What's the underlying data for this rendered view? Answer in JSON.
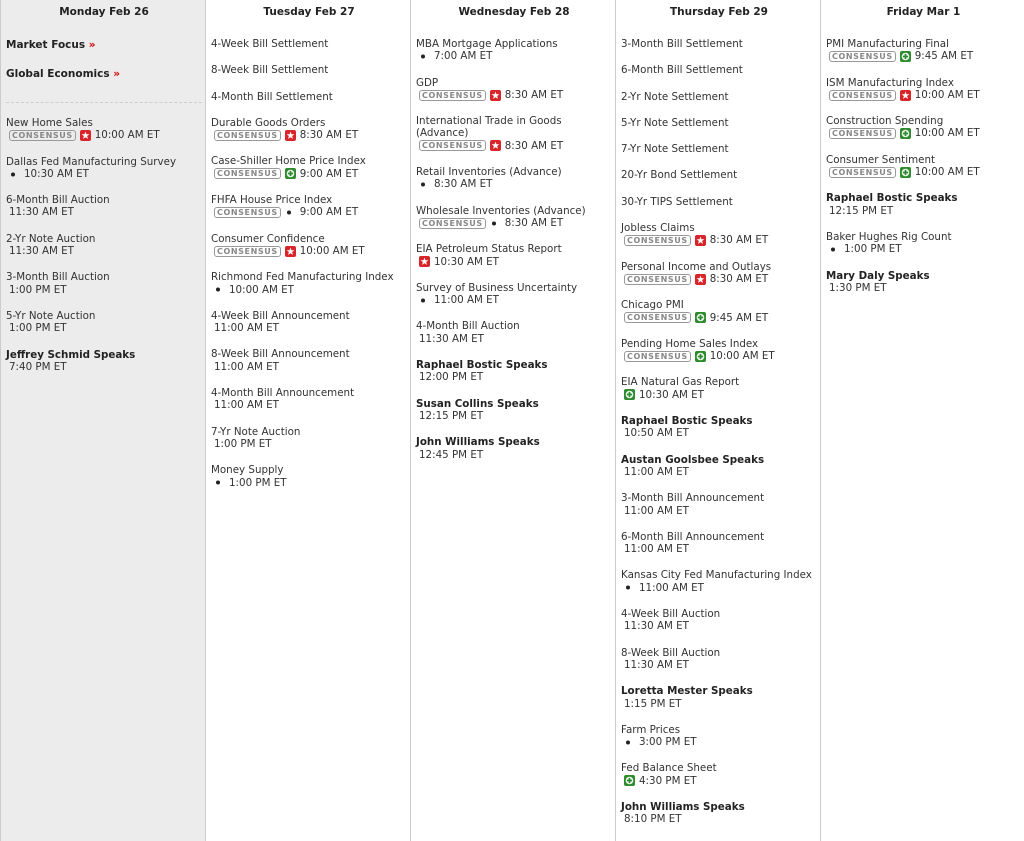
{
  "days": [
    {
      "header": "Monday Feb 26",
      "links": [
        {
          "label": "Market Focus",
          "arrow": "»"
        },
        {
          "label": "Global Economics",
          "arrow": "»"
        }
      ],
      "events": [
        {
          "name": "New Home Sales",
          "badge": "CONSENSUS",
          "icon": "star",
          "time": "10:00 AM ET"
        },
        {
          "name": "Dallas Fed Manufacturing Survey",
          "icon": "dot",
          "time": "10:30 AM ET"
        },
        {
          "name": "6-Month Bill Auction",
          "time": "11:30 AM ET"
        },
        {
          "name": "2-Yr Note Auction",
          "time": "11:30 AM ET"
        },
        {
          "name": "3-Month Bill Auction",
          "time": "1:00 PM ET"
        },
        {
          "name": "5-Yr Note Auction",
          "time": "1:00 PM ET"
        },
        {
          "name": "Jeffrey Schmid Speaks",
          "bold": true,
          "time": "7:40 PM ET"
        }
      ]
    },
    {
      "header": "Tuesday Feb 27",
      "events": [
        {
          "name": "4-Week Bill Settlement"
        },
        {
          "name": "8-Week Bill Settlement"
        },
        {
          "name": "4-Month Bill Settlement"
        },
        {
          "name": "Durable Goods Orders",
          "badge": "CONSENSUS",
          "icon": "star",
          "time": "8:30 AM ET"
        },
        {
          "name": "Case-Shiller Home Price Index",
          "badge": "CONSENSUS",
          "icon": "plus",
          "time": "9:00 AM ET"
        },
        {
          "name": "FHFA House Price Index",
          "badge": "CONSENSUS",
          "icon": "dot",
          "time": "9:00 AM ET"
        },
        {
          "name": "Consumer Confidence",
          "badge": "CONSENSUS",
          "icon": "star",
          "time": "10:00 AM ET"
        },
        {
          "name": "Richmond Fed Manufacturing Index",
          "icon": "dot",
          "time": "10:00 AM ET"
        },
        {
          "name": "4-Week Bill Announcement",
          "time": "11:00 AM ET"
        },
        {
          "name": "8-Week Bill Announcement",
          "time": "11:00 AM ET"
        },
        {
          "name": "4-Month Bill Announcement",
          "time": "11:00 AM ET"
        },
        {
          "name": "7-Yr Note Auction",
          "time": "1:00 PM ET"
        },
        {
          "name": "Money Supply",
          "icon": "dot",
          "time": "1:00 PM ET"
        }
      ]
    },
    {
      "header": "Wednesday Feb 28",
      "events": [
        {
          "name": "MBA Mortgage Applications",
          "icon": "dot",
          "time": "7:00 AM ET"
        },
        {
          "name": "GDP",
          "badge": "CONSENSUS",
          "icon": "star",
          "time": "8:30 AM ET"
        },
        {
          "name": "International Trade in Goods (Advance)",
          "badge": "CONSENSUS",
          "icon": "star",
          "time": "8:30 AM ET"
        },
        {
          "name": "Retail Inventories (Advance)",
          "icon": "dot",
          "time": "8:30 AM ET"
        },
        {
          "name": "Wholesale Inventories (Advance)",
          "badge": "CONSENSUS",
          "icon": "dot",
          "time": "8:30 AM ET"
        },
        {
          "name": "EIA Petroleum Status Report",
          "icon": "star",
          "time": "10:30 AM ET"
        },
        {
          "name": "Survey of Business Uncertainty",
          "icon": "dot",
          "time": "11:00 AM ET"
        },
        {
          "name": "4-Month Bill Auction",
          "time": "11:30 AM ET"
        },
        {
          "name": "Raphael Bostic Speaks",
          "bold": true,
          "time": "12:00 PM ET"
        },
        {
          "name": "Susan Collins Speaks",
          "bold": true,
          "time": "12:15 PM ET"
        },
        {
          "name": "John Williams Speaks",
          "bold": true,
          "time": "12:45 PM ET"
        }
      ]
    },
    {
      "header": "Thursday Feb 29",
      "events": [
        {
          "name": "3-Month Bill Settlement"
        },
        {
          "name": "6-Month Bill Settlement"
        },
        {
          "name": "2-Yr Note Settlement"
        },
        {
          "name": "5-Yr Note Settlement"
        },
        {
          "name": "7-Yr Note Settlement"
        },
        {
          "name": "20-Yr Bond Settlement"
        },
        {
          "name": "30-Yr TIPS Settlement"
        },
        {
          "name": "Jobless Claims",
          "badge": "CONSENSUS",
          "icon": "star",
          "time": "8:30 AM ET"
        },
        {
          "name": "Personal Income and Outlays",
          "badge": "CONSENSUS",
          "icon": "star",
          "time": "8:30 AM ET"
        },
        {
          "name": "Chicago PMI",
          "badge": "CONSENSUS",
          "icon": "plus",
          "time": "9:45 AM ET"
        },
        {
          "name": "Pending Home Sales Index",
          "badge": "CONSENSUS",
          "icon": "plus",
          "time": "10:00 AM ET"
        },
        {
          "name": "EIA Natural Gas Report",
          "icon": "plus",
          "time": "10:30 AM ET"
        },
        {
          "name": "Raphael Bostic Speaks",
          "bold": true,
          "time": "10:50 AM ET"
        },
        {
          "name": "Austan Goolsbee Speaks",
          "bold": true,
          "time": "11:00 AM ET"
        },
        {
          "name": "3-Month Bill Announcement",
          "time": "11:00 AM ET"
        },
        {
          "name": "6-Month Bill Announcement",
          "time": "11:00 AM ET"
        },
        {
          "name": "Kansas City Fed Manufacturing Index",
          "icon": "dot",
          "time": "11:00 AM ET"
        },
        {
          "name": "4-Week Bill Auction",
          "time": "11:30 AM ET"
        },
        {
          "name": "8-Week Bill Auction",
          "time": "11:30 AM ET"
        },
        {
          "name": "Loretta Mester Speaks",
          "bold": true,
          "time": "1:15 PM ET"
        },
        {
          "name": "Farm Prices",
          "icon": "dot",
          "time": "3:00 PM ET"
        },
        {
          "name": "Fed Balance Sheet",
          "icon": "plus",
          "time": "4:30 PM ET"
        },
        {
          "name": "John Williams Speaks",
          "bold": true,
          "time": "8:10 PM ET"
        }
      ]
    },
    {
      "header": "Friday Mar 1",
      "events": [
        {
          "name": "PMI Manufacturing Final",
          "badge": "CONSENSUS",
          "icon": "plus",
          "time": "9:45 AM ET"
        },
        {
          "name": "ISM Manufacturing Index",
          "badge": "CONSENSUS",
          "icon": "star",
          "time": "10:00 AM ET"
        },
        {
          "name": "Construction Spending",
          "badge": "CONSENSUS",
          "icon": "plus",
          "time": "10:00 AM ET"
        },
        {
          "name": "Consumer Sentiment",
          "badge": "CONSENSUS",
          "icon": "plus",
          "time": "10:00 AM ET"
        },
        {
          "name": "Raphael Bostic Speaks",
          "bold": true,
          "time": "12:15 PM ET"
        },
        {
          "name": "Baker Hughes Rig Count",
          "icon": "dot",
          "time": "1:00 PM ET"
        },
        {
          "name": "Mary Daly Speaks",
          "bold": true,
          "time": "1:30 PM ET"
        }
      ]
    }
  ]
}
